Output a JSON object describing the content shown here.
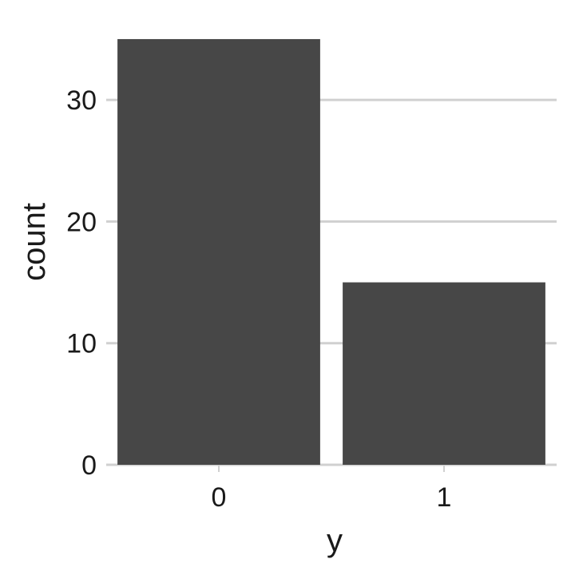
{
  "chart_data": {
    "type": "bar",
    "categories": [
      "0",
      "1"
    ],
    "values": [
      35,
      15
    ],
    "xlabel": "y",
    "ylabel": "count",
    "ylim": [
      0,
      37
    ],
    "yticks": [
      0,
      10,
      20,
      30
    ],
    "grid": true,
    "bar_color": "#474747"
  }
}
